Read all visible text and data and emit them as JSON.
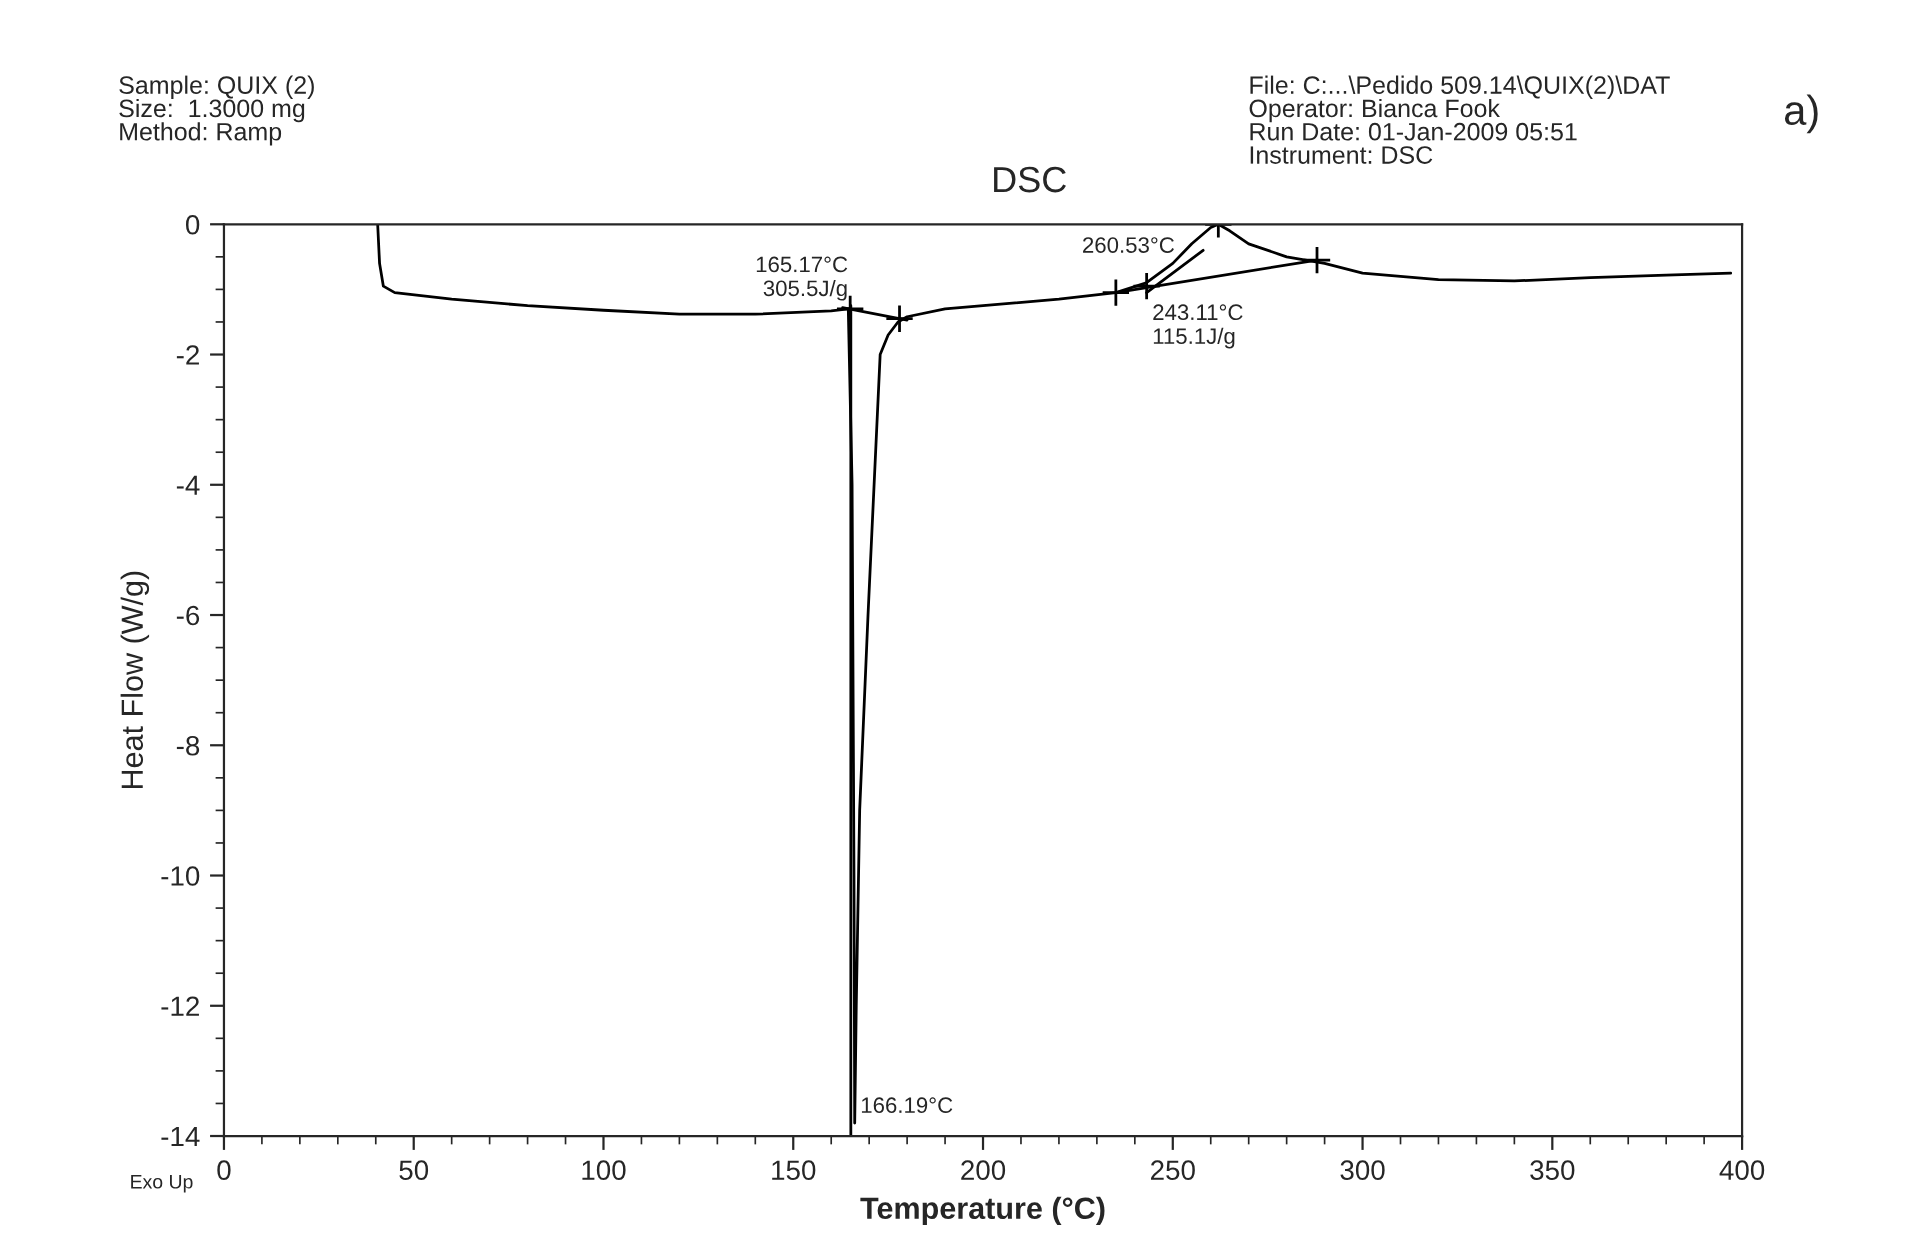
{
  "chart_data": {
    "type": "line",
    "title": "DSC",
    "xlabel": "Temperature (°C)",
    "ylabel": "Heat Flow (W/g)",
    "xlim": [
      0,
      400
    ],
    "ylim": [
      -14,
      0
    ],
    "xticks": [
      0,
      {
        "value": 10,
        "label": null
      },
      {
        "value": 20,
        "label": null
      },
      {
        "value": 30,
        "label": null
      },
      {
        "value": 40,
        "label": null
      },
      50,
      {
        "value": 60,
        "label": null
      },
      {
        "value": 70,
        "label": null
      },
      {
        "value": 80,
        "label": null
      },
      {
        "value": 90,
        "label": null
      },
      100,
      {
        "value": 110,
        "label": null
      },
      {
        "value": 120,
        "label": null
      },
      {
        "value": 130,
        "label": null
      },
      {
        "value": 140,
        "label": null
      },
      150,
      {
        "value": 160,
        "label": null
      },
      {
        "value": 170,
        "label": null
      },
      {
        "value": 180,
        "label": null
      },
      {
        "value": 190,
        "label": null
      },
      200,
      {
        "value": 210,
        "label": null
      },
      {
        "value": 220,
        "label": null
      },
      {
        "value": 230,
        "label": null
      },
      {
        "value": 240,
        "label": null
      },
      250,
      {
        "value": 260,
        "label": null
      },
      {
        "value": 270,
        "label": null
      },
      {
        "value": 280,
        "label": null
      },
      {
        "value": 290,
        "label": null
      },
      300,
      {
        "value": 310,
        "label": null
      },
      {
        "value": 320,
        "label": null
      },
      {
        "value": 330,
        "label": null
      },
      {
        "value": 340,
        "label": null
      },
      350,
      {
        "value": 360,
        "label": null
      },
      {
        "value": 370,
        "label": null
      },
      {
        "value": 380,
        "label": null
      },
      {
        "value": 390,
        "label": null
      },
      400
    ],
    "yticks": [
      -14,
      {
        "value": -13.5,
        "label": null
      },
      {
        "value": -13,
        "label": null
      },
      {
        "value": -12.5,
        "label": null
      },
      -12,
      {
        "value": -11.5,
        "label": null
      },
      {
        "value": -11,
        "label": null
      },
      {
        "value": -10.5,
        "label": null
      },
      -10,
      {
        "value": -9.5,
        "label": null
      },
      {
        "value": -9,
        "label": null
      },
      {
        "value": -8.5,
        "label": null
      },
      -8,
      {
        "value": -7.5,
        "label": null
      },
      {
        "value": -7,
        "label": null
      },
      {
        "value": -6.5,
        "label": null
      },
      -6,
      {
        "value": -5.5,
        "label": null
      },
      {
        "value": -5,
        "label": null
      },
      {
        "value": -4.5,
        "label": null
      },
      -4,
      {
        "value": -3.5,
        "label": null
      },
      {
        "value": -3,
        "label": null
      },
      {
        "value": -2.5,
        "label": null
      },
      -2,
      {
        "value": -1.5,
        "label": null
      },
      {
        "value": -1,
        "label": null
      },
      {
        "value": -0.5,
        "label": null
      },
      0
    ],
    "grid": false,
    "legend": false,
    "series": [
      {
        "color": "#000000",
        "x": [
          40.5,
          41,
          42,
          45,
          60,
          80,
          100,
          120,
          140,
          160,
          164.5,
          165.5,
          166,
          166.19,
          166.6,
          167.5,
          169.7,
          172.9,
          175,
          177.6,
          180,
          190,
          200,
          220,
          235,
          243,
          250,
          255,
          260,
          262,
          265,
          270,
          280,
          290,
          300,
          320,
          340,
          360,
          380,
          397
        ],
        "values": [
          0,
          -0.6,
          -0.95,
          -1.05,
          -1.15,
          -1.25,
          -1.32,
          -1.38,
          -1.38,
          -1.33,
          -1.3,
          -4,
          -10,
          -13.8,
          -12,
          -9,
          -6,
          -2,
          -1.7,
          -1.5,
          -1.42,
          -1.3,
          -1.25,
          -1.15,
          -1.05,
          -0.9,
          -0.6,
          -0.3,
          -0.05,
          0,
          -0.1,
          -0.3,
          -0.5,
          -0.6,
          -0.75,
          -0.85,
          -0.87,
          -0.82,
          -0.78,
          -0.75
        ]
      },
      {
        "color": "#000000",
        "x": [
          163,
          180
        ],
        "values": [
          -1.28,
          -1.47
        ]
      },
      {
        "color": "#000000",
        "x": [
          165.17,
          165.17
        ],
        "values": [
          -1.25,
          -14
        ]
      },
      {
        "color": "#000000",
        "x": [
          235,
          288
        ],
        "values": [
          -1.05,
          -0.55
        ]
      },
      {
        "color": "#000000",
        "x": [
          243.11,
          258
        ],
        "values": [
          -1.05,
          -0.4
        ]
      },
      {
        "type": "scatter",
        "marker": "cross",
        "color": "#000000",
        "x": [
          165,
          178,
          235,
          243.11,
          262,
          288
        ],
        "values": [
          -1.3,
          -1.45,
          -1.05,
          -0.95,
          0,
          -0.55
        ]
      }
    ],
    "annotations": [
      {
        "text": "165.17°C\n305.5J/g",
        "x": 165.17,
        "y": -1.3
      },
      {
        "text": "260.53°C",
        "x": 252,
        "y": -0.55
      },
      {
        "text": "243.11°C\n115.1J/g",
        "x": 243.11,
        "y": -1.05
      },
      {
        "text": "166.19°C",
        "x": 166.19,
        "y": -13.8
      },
      "Sample: QUIX (2)\nSize:  1.3000 mg\nMethod: Ramp",
      "File: C:...\\Pedido 509.14\\QUIX(2)\\DAT\nOperator: Bianca Fook\nRun Date: 01-Jan-2009 05:51\nInstrument: DSC",
      "a)",
      "Exo Up"
    ]
  }
}
